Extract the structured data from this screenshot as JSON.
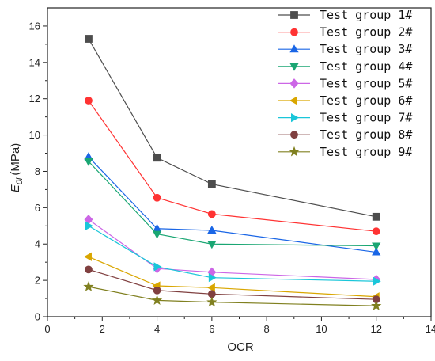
{
  "chart_data": {
    "type": "line",
    "xlabel": "OCR",
    "ylabel_main": "E",
    "ylabel_sub": "0i",
    "ylabel_unit": "(MPa)",
    "xlim": [
      0,
      14
    ],
    "ylim": [
      0,
      17
    ],
    "x_ticks": [
      0,
      2,
      4,
      6,
      8,
      10,
      12,
      14
    ],
    "y_ticks": [
      0,
      2,
      4,
      6,
      8,
      10,
      12,
      14,
      16
    ],
    "x": [
      1.5,
      4,
      6,
      12
    ],
    "grid": false,
    "legend_position": "top-right",
    "series": [
      {
        "name": "Test group 1#",
        "color": "#4d4d4d",
        "marker": "square",
        "values": [
          15.3,
          8.75,
          7.3,
          5.5
        ]
      },
      {
        "name": "Test group 2#",
        "color": "#ff3333",
        "marker": "circle",
        "values": [
          11.9,
          6.55,
          5.65,
          4.7
        ]
      },
      {
        "name": "Test group 3#",
        "color": "#1a66e6",
        "marker": "triangle-up",
        "values": [
          8.8,
          4.85,
          4.75,
          3.55
        ]
      },
      {
        "name": "Test group 4#",
        "color": "#1aa673",
        "marker": "triangle-down",
        "values": [
          8.55,
          4.55,
          4.0,
          3.9
        ]
      },
      {
        "name": "Test group 5#",
        "color": "#cc66e6",
        "marker": "diamond",
        "values": [
          5.35,
          2.65,
          2.45,
          2.05
        ]
      },
      {
        "name": "Test group 6#",
        "color": "#d9a600",
        "marker": "triangle-left",
        "values": [
          3.3,
          1.7,
          1.6,
          1.1
        ]
      },
      {
        "name": "Test group 7#",
        "color": "#1ac6d9",
        "marker": "triangle-right",
        "values": [
          5.0,
          2.75,
          2.15,
          1.95
        ]
      },
      {
        "name": "Test group 8#",
        "color": "#804040",
        "marker": "circle",
        "values": [
          2.6,
          1.45,
          1.25,
          0.95
        ]
      },
      {
        "name": "Test group 9#",
        "color": "#808020",
        "marker": "star",
        "values": [
          1.65,
          0.9,
          0.8,
          0.6
        ]
      }
    ]
  }
}
